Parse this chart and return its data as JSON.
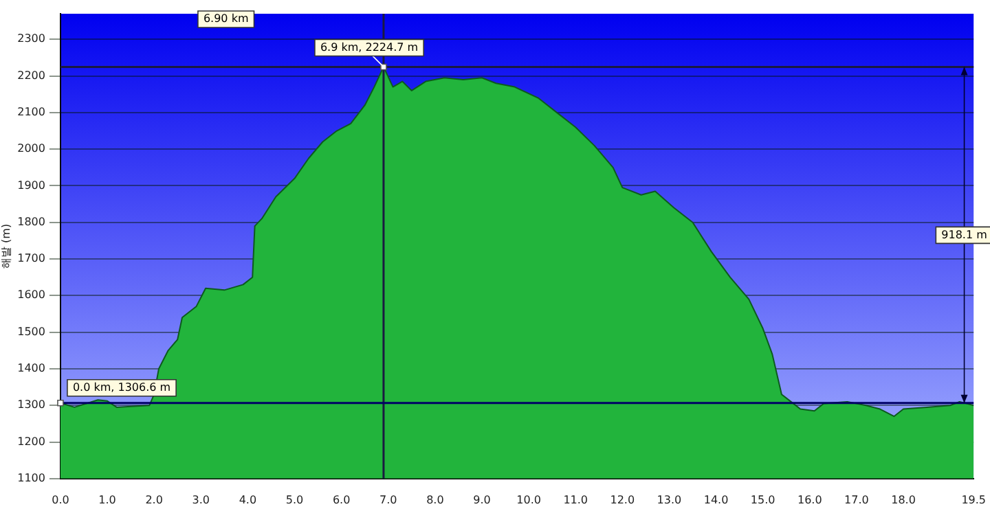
{
  "chart_data": {
    "type": "area",
    "ylabel": "해발 (m)",
    "x": [
      0,
      0.3,
      0.8,
      1.0,
      1.2,
      1.5,
      1.9,
      2.0,
      2.1,
      2.3,
      2.5,
      2.6,
      2.9,
      3.1,
      3.5,
      3.9,
      4.1,
      4.15,
      4.3,
      4.6,
      5.0,
      5.3,
      5.6,
      5.9,
      6.2,
      6.5,
      6.7,
      6.9,
      7.1,
      7.3,
      7.5,
      7.8,
      8.2,
      8.6,
      9.0,
      9.3,
      9.7,
      10.2,
      10.6,
      11.0,
      11.4,
      11.8,
      12.0,
      12.4,
      12.7,
      13.1,
      13.5,
      13.9,
      14.3,
      14.7,
      15.0,
      15.2,
      15.4,
      15.6,
      15.8,
      16.1,
      16.3,
      16.8,
      17.2,
      17.5,
      17.8,
      18.0,
      18.5,
      19.0,
      19.2,
      19.5
    ],
    "series": [
      {
        "color": "#22b43c",
        "values": [
          1306.6,
          1295,
          1315,
          1312,
          1295,
          1297,
          1300,
          1330,
          1400,
          1450,
          1480,
          1540,
          1570,
          1620,
          1615,
          1630,
          1650,
          1790,
          1810,
          1870,
          1920,
          1975,
          2020,
          2050,
          2070,
          2120,
          2170,
          2224.7,
          2170,
          2185,
          2160,
          2185,
          2195,
          2190,
          2195,
          2180,
          2170,
          2140,
          2100,
          2060,
          2010,
          1950,
          1895,
          1875,
          1885,
          1840,
          1800,
          1720,
          1650,
          1590,
          1510,
          1440,
          1330,
          1310,
          1290,
          1285,
          1305,
          1310,
          1300,
          1290,
          1270,
          1290,
          1295,
          1300,
          1310,
          1300
        ]
      }
    ],
    "xlim": [
      0,
      19.5
    ],
    "xticks": [
      {
        "value": 0,
        "label": "0.0"
      },
      {
        "value": 1,
        "label": "1.0"
      },
      {
        "value": 2,
        "label": "2.0"
      },
      {
        "value": 3,
        "label": "3.0"
      },
      {
        "value": 4,
        "label": "4.0"
      },
      {
        "value": 5,
        "label": "5.0"
      },
      {
        "value": 6,
        "label": "6.0"
      },
      {
        "value": 7,
        "label": "7.0"
      },
      {
        "value": 8,
        "label": "8.0"
      },
      {
        "value": 9,
        "label": "9.0"
      },
      {
        "value": 10,
        "label": "10.0"
      },
      {
        "value": 11,
        "label": "11.0"
      },
      {
        "value": 12,
        "label": "12.0"
      },
      {
        "value": 13,
        "label": "13.0"
      },
      {
        "value": 14,
        "label": "14.0"
      },
      {
        "value": 15,
        "label": "15.0"
      },
      {
        "value": 16,
        "label": "16.0"
      },
      {
        "value": 17,
        "label": "17.0"
      },
      {
        "value": 18,
        "label": "18.0"
      },
      19.5
    ],
    "ylim": [
      1100,
      2370
    ],
    "yticks": [
      1100,
      1200,
      1300,
      1400,
      1500,
      1600,
      1700,
      1800,
      1900,
      2000,
      2100,
      2200,
      2300
    ],
    "grid": "y",
    "legend": false,
    "marker": "none",
    "ref_lines": [
      {
        "axis": "x",
        "value": 6.9,
        "color": "#1a1a40"
      },
      {
        "axis": "y",
        "value": 2224.7,
        "color": "#1a1a40"
      },
      {
        "axis": "y",
        "value": 1306.6,
        "color": "#000066"
      }
    ],
    "annotations": [
      "6.90 km",
      {
        "text": "6.9 km, 2224.7 m",
        "x": 6.9,
        "y": 2224.7
      },
      {
        "text": "0.0 km, 1306.6 m",
        "x": 0,
        "y": 1306.6
      },
      {
        "text": "918.1 m",
        "x": 19.3,
        "y": 1765
      }
    ]
  }
}
